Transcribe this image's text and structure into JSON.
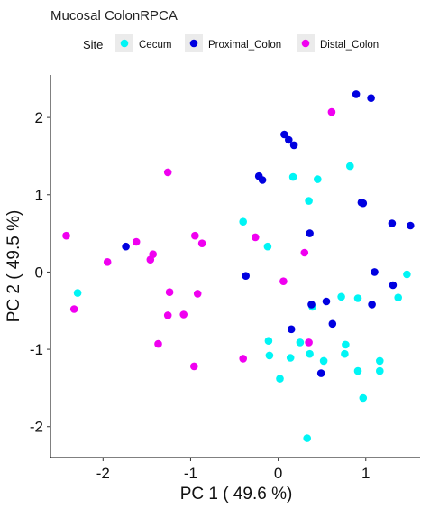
{
  "chart_data": {
    "type": "scatter",
    "title": "Mucosal ColonRPCA",
    "xlabel": "PC 1 ( 49.6 %)",
    "ylabel": "PC 2 ( 49.5 %)",
    "xlim": [
      -2.6,
      1.62
    ],
    "ylim": [
      -2.4,
      2.55
    ],
    "xticks": [
      -2,
      -1,
      0,
      1
    ],
    "xtick_labels": [
      "-2",
      "-1",
      "0",
      "1"
    ],
    "yticks": [
      -2,
      -1,
      0,
      1,
      2
    ],
    "ytick_labels": [
      "-2",
      "-1",
      "0",
      "1",
      "2"
    ],
    "grid": false,
    "legend": {
      "title": "Site",
      "position": "top"
    },
    "series": [
      {
        "name": "Cecum",
        "color": "#00f5f5",
        "points": [
          [
            -2.29,
            -0.27
          ],
          [
            -0.4,
            0.65
          ],
          [
            -0.12,
            0.33
          ],
          [
            0.17,
            1.23
          ],
          [
            0.35,
            0.92
          ],
          [
            0.45,
            1.2
          ],
          [
            0.82,
            1.37
          ],
          [
            1.47,
            -0.03
          ],
          [
            1.37,
            -0.33
          ],
          [
            0.72,
            -0.32
          ],
          [
            0.91,
            -0.34
          ],
          [
            0.39,
            -0.45
          ],
          [
            -0.11,
            -0.89
          ],
          [
            -0.1,
            -1.08
          ],
          [
            0.02,
            -1.38
          ],
          [
            0.14,
            -1.11
          ],
          [
            0.25,
            -0.91
          ],
          [
            0.36,
            -1.06
          ],
          [
            0.52,
            -1.15
          ],
          [
            0.77,
            -0.94
          ],
          [
            0.76,
            -1.06
          ],
          [
            0.91,
            -1.28
          ],
          [
            0.97,
            -1.63
          ],
          [
            1.16,
            -1.15
          ],
          [
            1.16,
            -1.28
          ],
          [
            0.33,
            -2.15
          ]
        ]
      },
      {
        "name": "Proximal_Colon",
        "color": "#0000e0",
        "points": [
          [
            0.89,
            2.3
          ],
          [
            1.06,
            2.25
          ],
          [
            0.07,
            1.78
          ],
          [
            0.12,
            1.71
          ],
          [
            0.18,
            1.64
          ],
          [
            -0.22,
            1.24
          ],
          [
            -0.18,
            1.19
          ],
          [
            0.95,
            0.9
          ],
          [
            0.97,
            0.89
          ],
          [
            1.3,
            0.63
          ],
          [
            1.51,
            0.6
          ],
          [
            0.36,
            0.5
          ],
          [
            -1.74,
            0.33
          ],
          [
            -0.37,
            -0.05
          ],
          [
            1.1,
            0.0
          ],
          [
            1.31,
            -0.17
          ],
          [
            0.38,
            -0.42
          ],
          [
            0.55,
            -0.38
          ],
          [
            1.07,
            -0.42
          ],
          [
            0.15,
            -0.74
          ],
          [
            0.62,
            -0.67
          ],
          [
            0.49,
            -1.31
          ]
        ]
      },
      {
        "name": "Distal_Colon",
        "color": "#f000f0",
        "points": [
          [
            0.61,
            2.07
          ],
          [
            -1.26,
            1.29
          ],
          [
            -2.42,
            0.47
          ],
          [
            -1.62,
            0.39
          ],
          [
            -0.95,
            0.47
          ],
          [
            -0.87,
            0.37
          ],
          [
            -1.43,
            0.23
          ],
          [
            -1.46,
            0.16
          ],
          [
            -1.95,
            0.13
          ],
          [
            -0.26,
            0.45
          ],
          [
            0.3,
            0.25
          ],
          [
            0.06,
            -0.12
          ],
          [
            -1.24,
            -0.26
          ],
          [
            -0.92,
            -0.28
          ],
          [
            -1.26,
            -0.56
          ],
          [
            -1.08,
            -0.55
          ],
          [
            -2.33,
            -0.48
          ],
          [
            -1.37,
            -0.93
          ],
          [
            -0.96,
            -1.22
          ],
          [
            -0.4,
            -1.12
          ],
          [
            0.35,
            -0.91
          ]
        ]
      }
    ]
  }
}
